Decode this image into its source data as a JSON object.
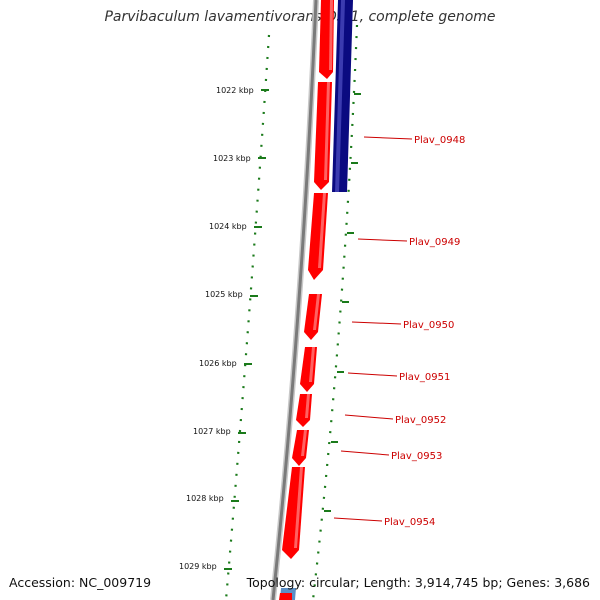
{
  "title": "Parvibaculum lavamentivorans DS-1, complete genome",
  "footer": {
    "accession": "Accession: NC_009719",
    "topology": "Topology: circular; Length: 3,914,745 bp; Genes: 3,686"
  },
  "colors": {
    "gene_forward": "#ff0000",
    "gene_reverse_dark": "#0a0a80",
    "gene_reverse_light": "#5b8fc6",
    "backbone": "#808080",
    "tick": "#1a7a1a",
    "gene_label": "#cc0000"
  },
  "ticks": [
    "1022 kbp",
    "1023 kbp",
    "1024 kbp",
    "1025 kbp",
    "1026 kbp",
    "1027 kbp",
    "1028 kbp",
    "1029 kbp"
  ],
  "gene_labels": [
    "Plav_0948",
    "Plav_0949",
    "Plav_0950",
    "Plav_0951",
    "Plav_0952",
    "Plav_0953",
    "Plav_0954"
  ]
}
